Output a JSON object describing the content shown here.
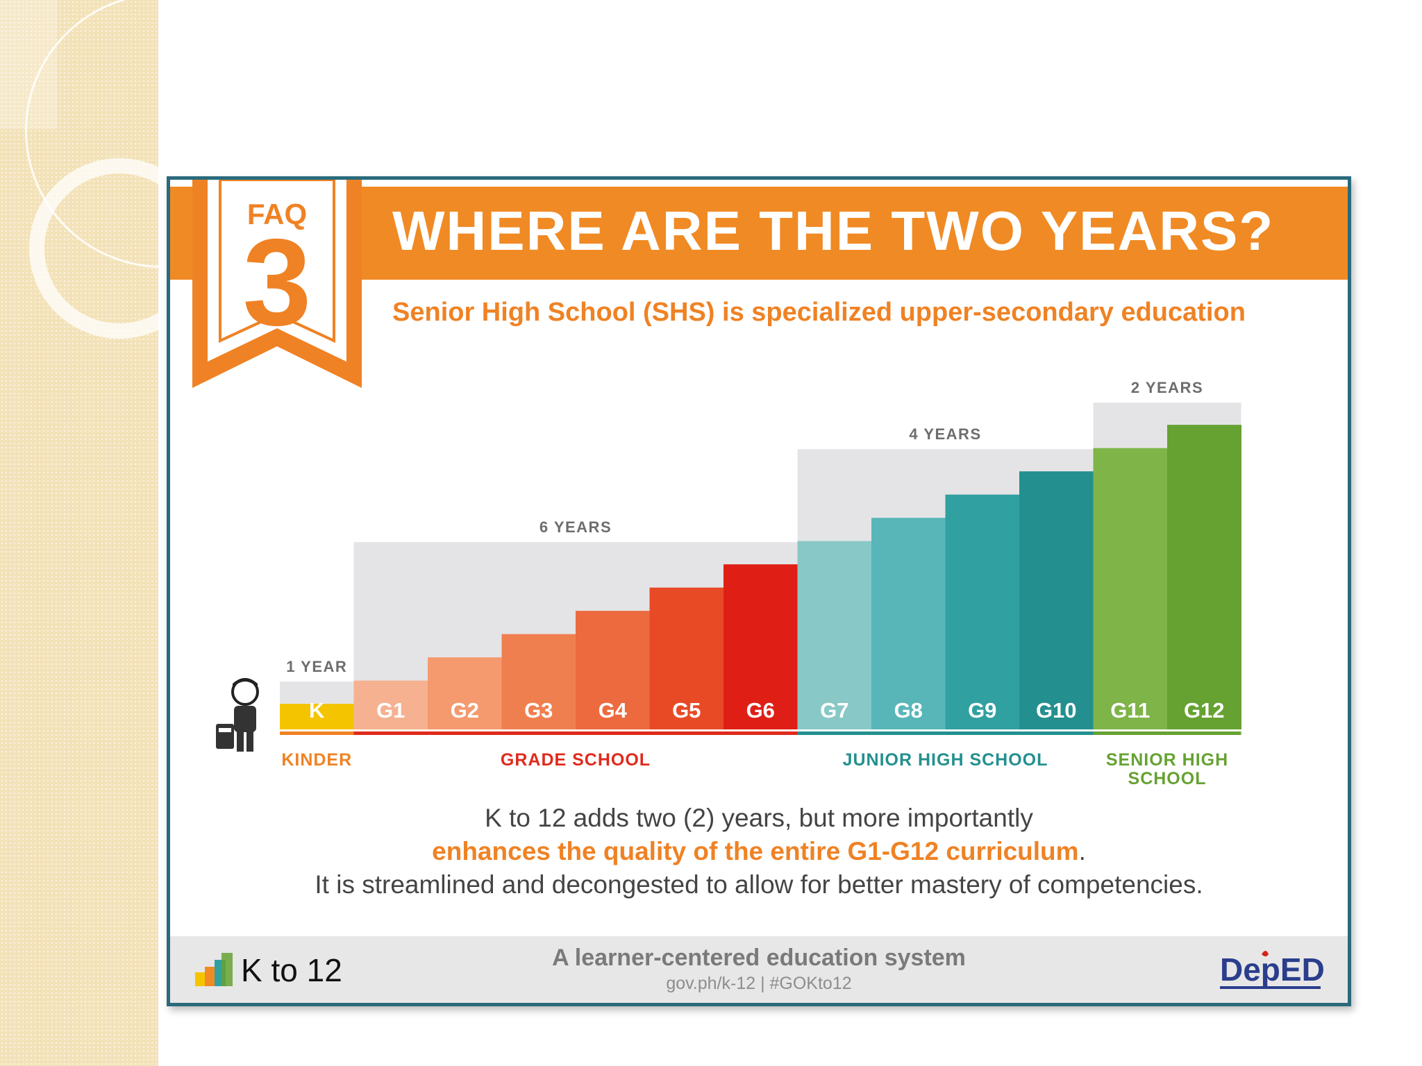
{
  "infographic": {
    "faq_label": "FAQ",
    "faq_number": "3",
    "headline": "WHERE ARE THE TWO YEARS?",
    "subtitle": "Senior High School (SHS) is specialized upper-secondary education",
    "footer": {
      "line1": "K to 12 adds two (2) years, but more importantly",
      "line2": "enhances the quality of the entire G1-G12 curriculum",
      "line2_tail": ".",
      "line3": "It is streamlined and decongested to allow for better mastery of competencies."
    },
    "bottom_bar": {
      "logo_text": "K to 12",
      "tagline": "A learner-centered education system",
      "url": "gov.ph/k-12 | #GOKto12",
      "deped_logo_text": "DepED"
    }
  },
  "colors": {
    "orange": "#f08a24",
    "teal_border": "#2a6a7c",
    "span_bg": "#e4e4e6"
  },
  "chart_data": {
    "type": "bar",
    "categories": [
      "K",
      "G1",
      "G2",
      "G3",
      "G4",
      "G5",
      "G6",
      "G7",
      "G8",
      "G9",
      "G10",
      "G11",
      "G12"
    ],
    "values": [
      1,
      2,
      3,
      4,
      5,
      6,
      7,
      8,
      9,
      10,
      11,
      12,
      13
    ],
    "colors": [
      "#f5c400",
      "#f6b190",
      "#f49a6e",
      "#f07f4f",
      "#ec6a3e",
      "#e84a26",
      "#df1f16",
      "#88c8c6",
      "#58b6b8",
      "#31a0a1",
      "#23908f",
      "#7eb448",
      "#66a232"
    ],
    "spans": [
      {
        "label": "1 YEAR",
        "start": 0,
        "end": 0
      },
      {
        "label": "6 YEARS",
        "start": 1,
        "end": 6
      },
      {
        "label": "4 YEARS",
        "start": 7,
        "end": 10
      },
      {
        "label": "2 YEARS",
        "start": 11,
        "end": 12
      }
    ],
    "levels": [
      {
        "lines": [
          "KINDER"
        ],
        "start": 0,
        "end": 0,
        "color": "#ef8224"
      },
      {
        "lines": [
          "GRADE SCHOOL"
        ],
        "start": 1,
        "end": 6,
        "color": "#df2a1c"
      },
      {
        "lines": [
          "JUNIOR HIGH SCHOOL"
        ],
        "start": 7,
        "end": 10,
        "color": "#23908f"
      },
      {
        "lines": [
          "SENIOR HIGH",
          "SCHOOL"
        ],
        "start": 11,
        "end": 12,
        "color": "#66a232"
      }
    ],
    "title": "",
    "xlabel": "",
    "ylabel": ""
  }
}
